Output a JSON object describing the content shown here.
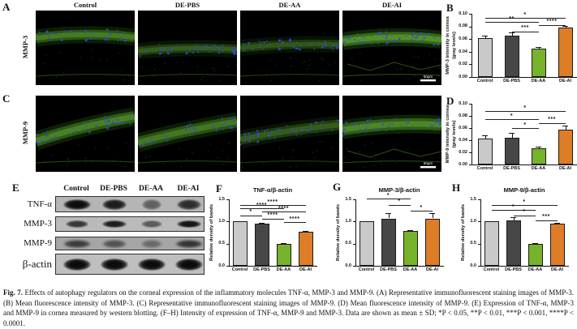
{
  "groups": [
    "Control",
    "DE-PBS",
    "DE-AA",
    "DE-AI"
  ],
  "colors": {
    "bars": [
      "#c9c9c9",
      "#474747",
      "#77b22b",
      "#dd7d28"
    ],
    "nuclei_stain": "#3646d8",
    "green_stain": "#4b9620",
    "axis": "#111111"
  },
  "panel_a": {
    "label": "A",
    "row_label": "MMP-3",
    "scale_bar": "50μm",
    "images": [
      {
        "group": "Control",
        "band_y": [
          34,
          26,
          33
        ],
        "band_width": 12,
        "intensity": 0.8
      },
      {
        "group": "DE-PBS",
        "band_y": [
          50,
          44,
          48
        ],
        "band_width": 11,
        "intensity": 0.55
      },
      {
        "group": "DE-AA",
        "band_y": [
          46,
          40,
          42
        ],
        "band_width": 11,
        "intensity": 0.5
      },
      {
        "group": "DE-AI",
        "band_y": [
          38,
          29,
          36
        ],
        "band_width": 13,
        "intensity": 1.0,
        "stroma_lines": true,
        "scale_bar": "50μm"
      }
    ]
  },
  "panel_c": {
    "label": "C",
    "row_label": "MMP-9",
    "scale_bar": "50μm",
    "images": [
      {
        "group": "Control",
        "band_y": [
          56,
          36,
          26
        ],
        "band_width": 14,
        "intensity": 0.85
      },
      {
        "group": "DE-PBS",
        "band_y": [
          58,
          42,
          32
        ],
        "band_width": 14,
        "intensity": 0.75
      },
      {
        "group": "DE-AA",
        "band_y": [
          54,
          42,
          36
        ],
        "band_width": 13,
        "intensity": 0.55
      },
      {
        "group": "DE-AI",
        "band_y": [
          42,
          32,
          36
        ],
        "band_width": 14,
        "intensity": 0.9,
        "stroma_lines": true,
        "scale_bar": "50μm"
      }
    ]
  },
  "panel_e": {
    "label": "E",
    "headers": [
      "Control",
      "DE-PBS",
      "DE-AA",
      "DE-AI"
    ],
    "rows": [
      {
        "protein": "TNF-α",
        "intensities": [
          1.0,
          0.9,
          0.5,
          0.8
        ]
      },
      {
        "protein": "MMP-3",
        "intensities": [
          0.75,
          0.9,
          0.55,
          0.95
        ]
      },
      {
        "protein": "MMP-9",
        "intensities": [
          0.7,
          0.55,
          0.4,
          0.75
        ]
      },
      {
        "protein": "β-actin",
        "intensities": [
          1.0,
          1.0,
          1.0,
          1.0
        ]
      }
    ]
  },
  "chart_data": [
    {
      "id": "B",
      "panel_label": "B",
      "type": "bar",
      "categories": [
        "Control",
        "DE-PBS",
        "DE-AA",
        "DE-AI"
      ],
      "values": [
        0.062,
        0.066,
        0.045,
        0.078
      ],
      "errors": [
        0.003,
        0.005,
        0.002,
        0.003
      ],
      "title": "",
      "xlabel": "",
      "ylabel": "MMP-3 intensity in cornea\n(gray levels)",
      "ylim": [
        0,
        0.1
      ],
      "yticks": [
        "0.00",
        "0.02",
        "0.04",
        "0.06",
        "0.08",
        "0.10"
      ],
      "grid": false,
      "legend": "none",
      "significance": [
        {
          "from": 0,
          "to": 3,
          "label": "*",
          "row": 0
        },
        {
          "from": 0,
          "to": 2,
          "label": "**",
          "row": 1
        },
        {
          "from": 2,
          "to": 3,
          "label": "****",
          "row": 1.7
        },
        {
          "from": 1,
          "to": 2,
          "label": "***",
          "row": 3.3
        }
      ]
    },
    {
      "id": "D",
      "panel_label": "D",
      "type": "bar",
      "categories": [
        "Control",
        "DE-PBS",
        "DE-AA",
        "DE-AI"
      ],
      "values": [
        0.043,
        0.044,
        0.027,
        0.058
      ],
      "errors": [
        0.005,
        0.008,
        0.002,
        0.006
      ],
      "title": "",
      "xlabel": "",
      "ylabel": "MMP-9 intensity in cornea\n(gray levels)",
      "ylim": [
        0,
        0.1
      ],
      "yticks": [
        "0.00",
        "0.02",
        "0.04",
        "0.06",
        "0.08",
        "0.10"
      ],
      "grid": false,
      "legend": "none",
      "significance": [
        {
          "from": 0,
          "to": 3,
          "label": "*",
          "row": 0
        },
        {
          "from": 0,
          "to": 2,
          "label": "*",
          "row": 1.9
        },
        {
          "from": 2,
          "to": 3,
          "label": "***",
          "row": 2.8
        },
        {
          "from": 1,
          "to": 2,
          "label": "*",
          "row": 4
        }
      ]
    },
    {
      "id": "F",
      "panel_label": "F",
      "type": "bar",
      "categories": [
        "Control",
        "DE-PBS",
        "DE-AA",
        "DE-AI"
      ],
      "values": [
        1.0,
        0.95,
        0.49,
        0.76
      ],
      "errors": [
        0,
        0.02,
        0.02,
        0.03
      ],
      "title": "TNF-α/β-actin",
      "xlabel": "",
      "ylabel": "Relative density of bands",
      "ylim": [
        0,
        1.5
      ],
      "yticks": [
        "0.0",
        "0.5",
        "1.0",
        "1.5"
      ],
      "grid": false,
      "legend": "none",
      "significance": [
        {
          "from": 0,
          "to": 3,
          "label": "****",
          "row": 0
        },
        {
          "from": 0,
          "to": 2,
          "label": "****",
          "row": 1
        },
        {
          "from": 1,
          "to": 3,
          "label": "****",
          "row": 2
        },
        {
          "from": 0,
          "to": 1,
          "label": "*",
          "row": 3
        },
        {
          "from": 1,
          "to": 2,
          "label": "****",
          "row": 4
        },
        {
          "from": 2,
          "to": 3,
          "label": "****",
          "row": 5
        }
      ]
    },
    {
      "id": "G",
      "panel_label": "G",
      "type": "bar",
      "categories": [
        "Control",
        "DE-PBS",
        "DE-AA",
        "DE-AI"
      ],
      "values": [
        1.0,
        1.07,
        0.78,
        1.07
      ],
      "errors": [
        0,
        0.12,
        0.03,
        0.12
      ],
      "title": "MMP-3/β-actin",
      "xlabel": "",
      "ylabel": "Relative density of bands",
      "ylim": [
        0,
        1.5
      ],
      "yticks": [
        "0.0",
        "0.5",
        "1.0",
        "1.5"
      ],
      "grid": false,
      "legend": "none",
      "significance": [
        {
          "from": 0,
          "to": 2,
          "label": "*",
          "row": 0
        },
        {
          "from": 1,
          "to": 2,
          "label": "*",
          "row": 1
        },
        {
          "from": 2,
          "to": 3,
          "label": "*",
          "row": 2
        }
      ]
    },
    {
      "id": "H",
      "panel_label": "H",
      "type": "bar",
      "categories": [
        "Control",
        "DE-PBS",
        "DE-AA",
        "DE-AI"
      ],
      "values": [
        1.0,
        1.03,
        0.49,
        0.95
      ],
      "errors": [
        0,
        0.06,
        0.02,
        0.02
      ],
      "title": "MMP-9/β-actin",
      "xlabel": "",
      "ylabel": "Relative density of bands",
      "ylim": [
        0,
        1.5
      ],
      "yticks": [
        "0.0",
        "0.5",
        "1.0",
        "1.5"
      ],
      "grid": false,
      "legend": "none",
      "significance": [
        {
          "from": 0,
          "to": 3,
          "label": "*",
          "row": 0
        },
        {
          "from": 0,
          "to": 2,
          "label": "*",
          "row": 1
        },
        {
          "from": 1,
          "to": 2,
          "label": "*",
          "row": 2
        },
        {
          "from": 2,
          "to": 3,
          "label": "***",
          "row": 3
        }
      ]
    }
  ],
  "figure": {
    "caption_label": "Fig. 7.",
    "caption_text": "Effects of autophagy regulators on the corneal expression of the inflammatory molecules TNF-α, MMP-3 and MMP-9. (A) Representative immunofluorescent staining images of MMP-3. (B) Mean fluorescence intensity of MMP-3. (C) Representative immunofluorescent staining images of MMP-9. (D) Mean fluorescence intensity of MMP-9. (E) Expression of TNF-α, MMP-3 and MMP-9 in cornea measured by western blotting. (F–H) Intensity of expression of TNF-α, MMP-9 and MMP-3. Data are shown as mean ± SD; *P < 0.05, **P < 0.01, ***P < 0.001, ****P < 0.0001."
  }
}
